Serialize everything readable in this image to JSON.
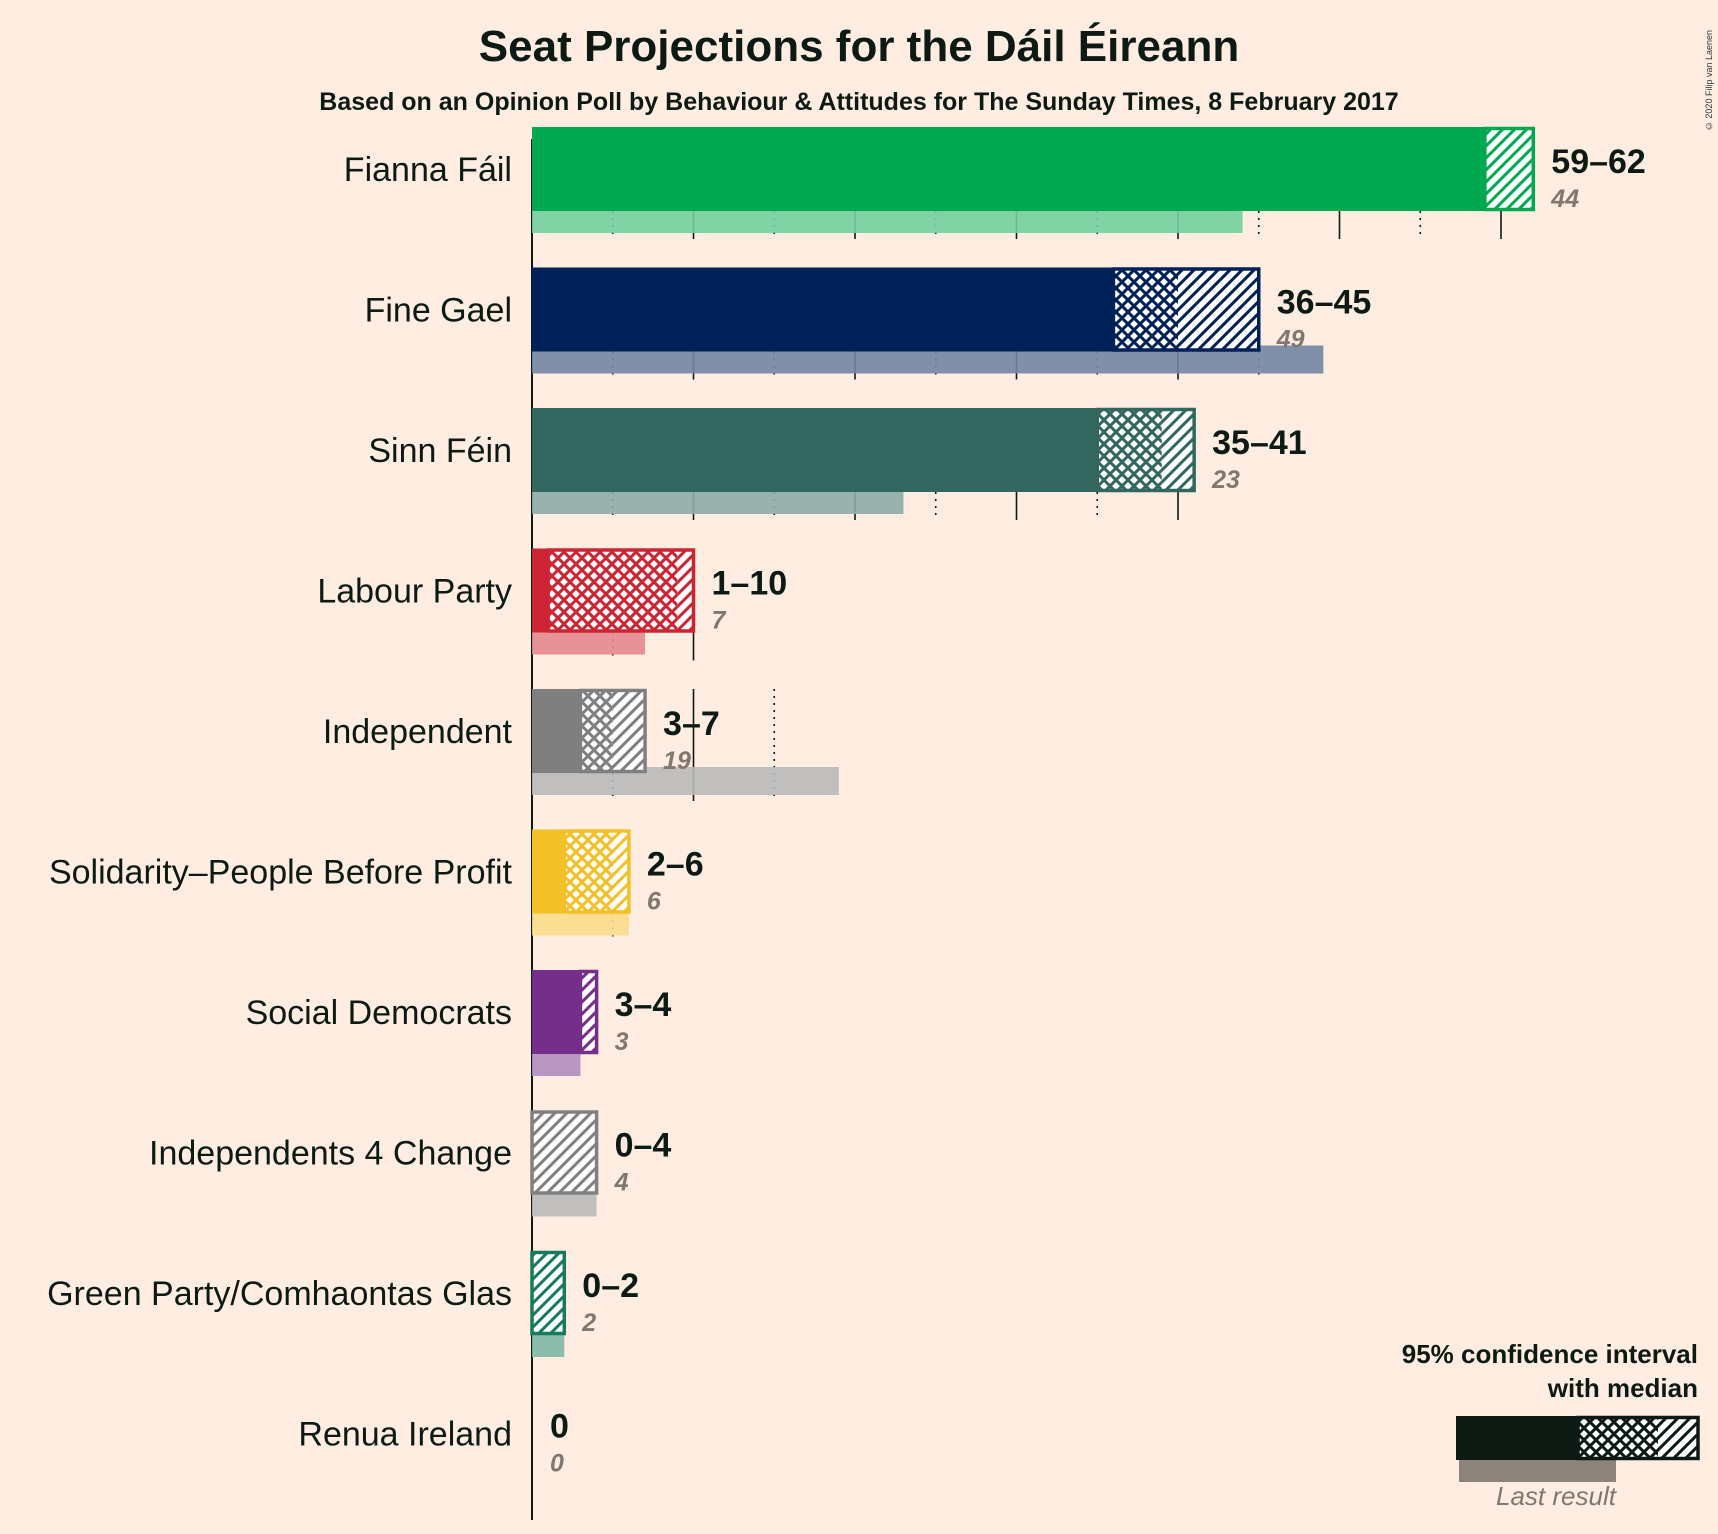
{
  "chart_data": {
    "type": "bar",
    "title": "Seat Projections for the Dáil Éireann",
    "subtitle": "Based on an Opinion Poll by Behaviour & Attitudes for The Sunday Times, 8 February 2017",
    "credit": "© 2020 Filip van Laenen",
    "xlim": [
      0,
      62
    ],
    "grid": "vertical lines every 5 seats (solid every 10, dotted between)",
    "parties": [
      {
        "name": "Fianna Fáil",
        "color": "#00A84F",
        "low": 59,
        "median": 59,
        "high": 62,
        "range_label": "59–62",
        "last": 44,
        "last_label": "44"
      },
      {
        "name": "Fine Gael",
        "color": "#002157",
        "low": 36,
        "median": 40,
        "high": 45,
        "range_label": "36–45",
        "last": 49,
        "last_label": "49"
      },
      {
        "name": "Sinn Féin",
        "color": "#326760",
        "low": 35,
        "median": 39,
        "high": 41,
        "range_label": "35–41",
        "last": 23,
        "last_label": "23"
      },
      {
        "name": "Labour Party",
        "color": "#CC2433",
        "low": 1,
        "median": 9,
        "high": 10,
        "range_label": "1–10",
        "last": 7,
        "last_label": "7"
      },
      {
        "name": "Independent",
        "color": "#7F7F7F",
        "low": 3,
        "median": 5,
        "high": 7,
        "range_label": "3–7",
        "last": 19,
        "last_label": "19"
      },
      {
        "name": "Solidarity–People Before Profit",
        "color": "#F4C028",
        "low": 2,
        "median": 5,
        "high": 6,
        "range_label": "2–6",
        "last": 6,
        "last_label": "6"
      },
      {
        "name": "Social Democrats",
        "color": "#752F8B",
        "low": 3,
        "median": 3,
        "high": 4,
        "range_label": "3–4",
        "last": 3,
        "last_label": "3"
      },
      {
        "name": "Independents 4 Change",
        "color": "#808080",
        "low": 0,
        "median": 0,
        "high": 4,
        "range_label": "0–4",
        "last": 4,
        "last_label": "4"
      },
      {
        "name": "Green Party/Comhaontas Glas",
        "color": "#177A5E",
        "low": 0,
        "median": 0,
        "high": 2,
        "range_label": "0–2",
        "last": 2,
        "last_label": "2"
      },
      {
        "name": "Renua Ireland",
        "color": "#808080",
        "low": 0,
        "median": 0,
        "high": 0,
        "range_label": "0",
        "last": 0,
        "last_label": "0"
      }
    ]
  },
  "legend": {
    "line1": "95% confidence interval",
    "line2": "with median",
    "last_result": "Last result"
  }
}
